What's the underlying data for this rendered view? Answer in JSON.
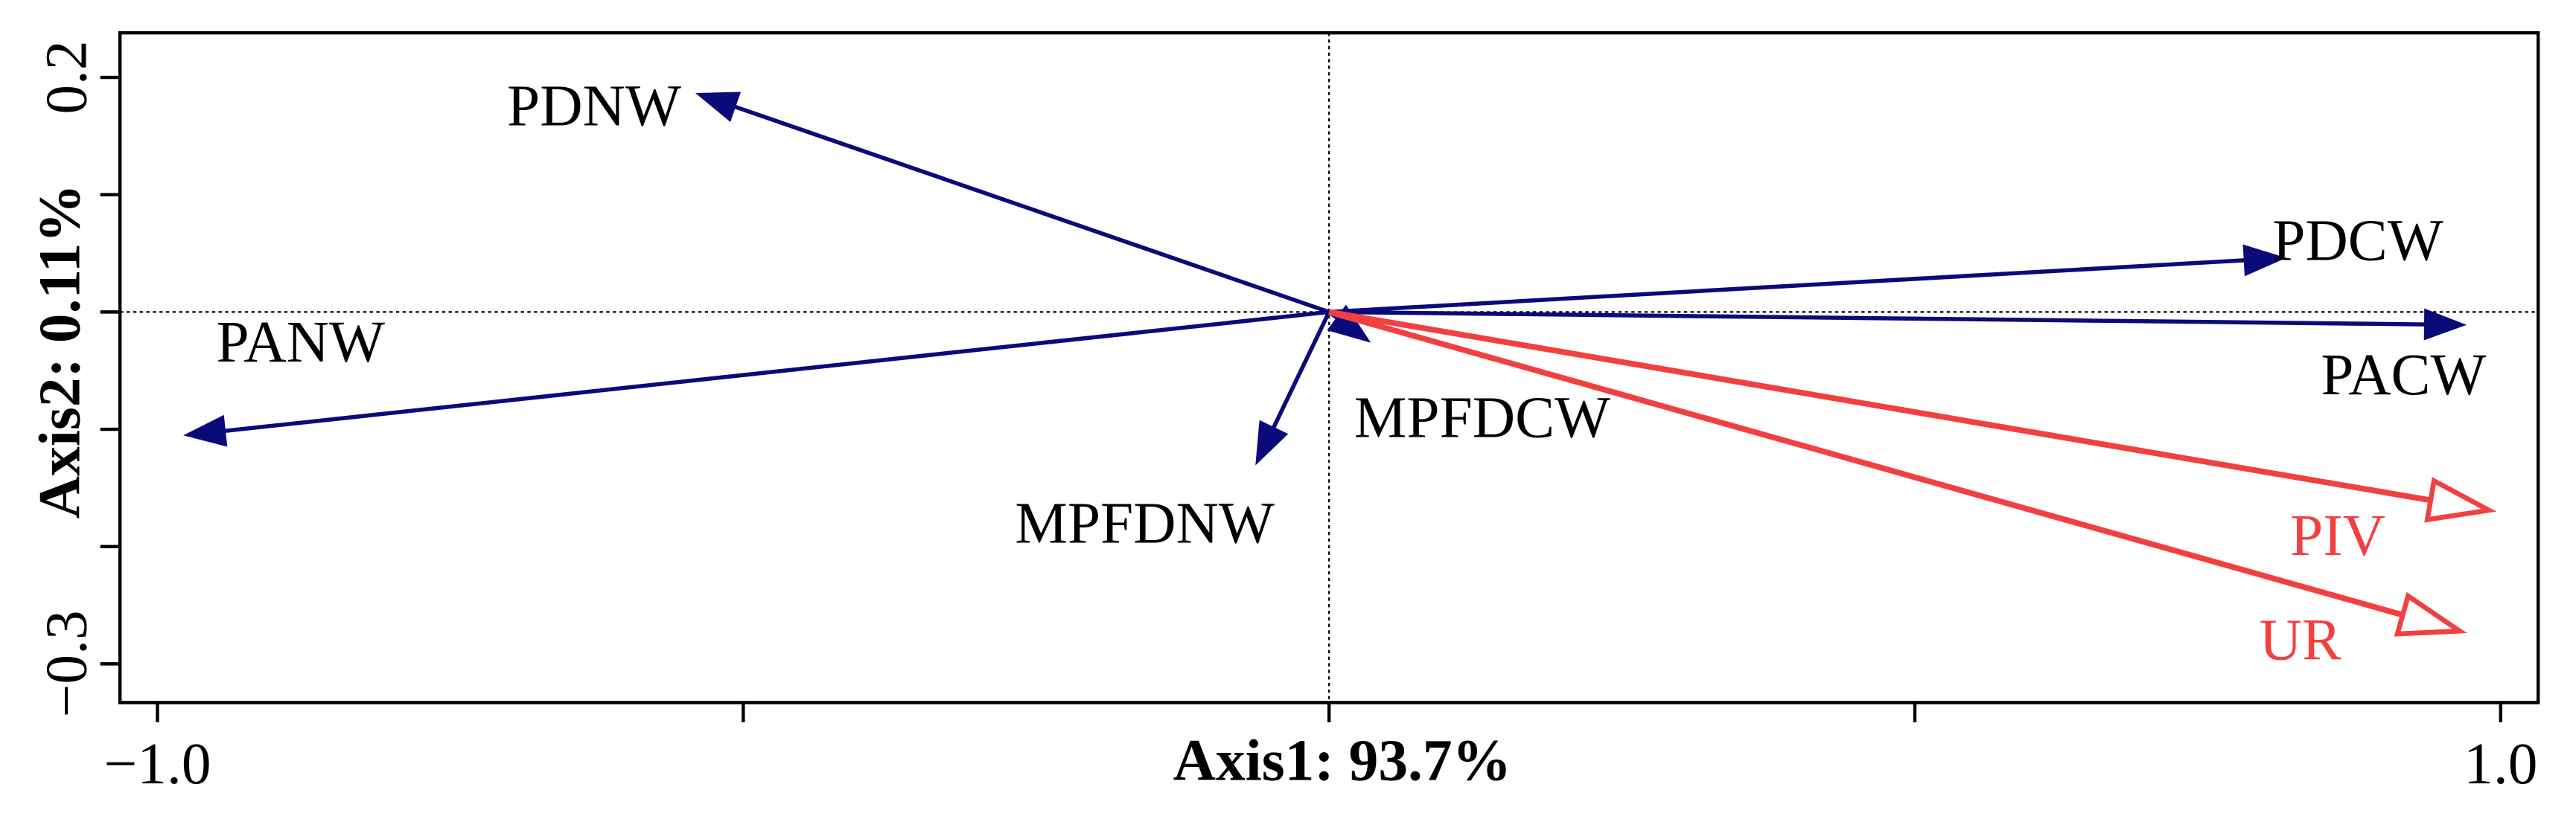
{
  "chart_data": {
    "type": "biplot",
    "xlabel": "Axis1: 93.7%",
    "ylabel": "Axis2: 0.11%",
    "xlim": [
      -1.032,
      1.032
    ],
    "ylim": [
      -0.333,
      0.238
    ],
    "xticks": [
      {
        "value": -1.0,
        "label": "−1.0"
      },
      {
        "value": 1.0,
        "label": "1.0"
      }
    ],
    "x_minor_ticks": [
      -0.5,
      0,
      0.5
    ],
    "yticks": [
      0.2,
      {
        "value": -0.3,
        "label": "−0.3"
      }
    ],
    "y_minor_ticks": [
      0.1,
      0,
      -0.1,
      -0.2
    ],
    "origin_lines": true,
    "series": [
      {
        "color": "#0a0a7a",
        "arrowhead": "filled",
        "vectors": [
          {
            "label": "PDNW",
            "x": -0.539,
            "y": 0.186
          },
          {
            "label": "PDCW",
            "x": 0.815,
            "y": 0.046
          },
          {
            "label": "PACW",
            "x": 0.969,
            "y": -0.011
          },
          {
            "label": "PANW",
            "x": -0.976,
            "y": -0.105
          },
          {
            "label": "MPFDNW",
            "x": -0.062,
            "y": -0.129
          },
          {
            "label": "MPFDCW",
            "x": 0.034,
            "y": -0.025
          }
        ]
      },
      {
        "color": "#f24040",
        "arrowhead": "open",
        "vectors": [
          {
            "label": "PIV",
            "x": 0.99,
            "y": -0.169
          },
          {
            "label": "UR",
            "x": 0.965,
            "y": -0.272
          }
        ]
      }
    ]
  }
}
